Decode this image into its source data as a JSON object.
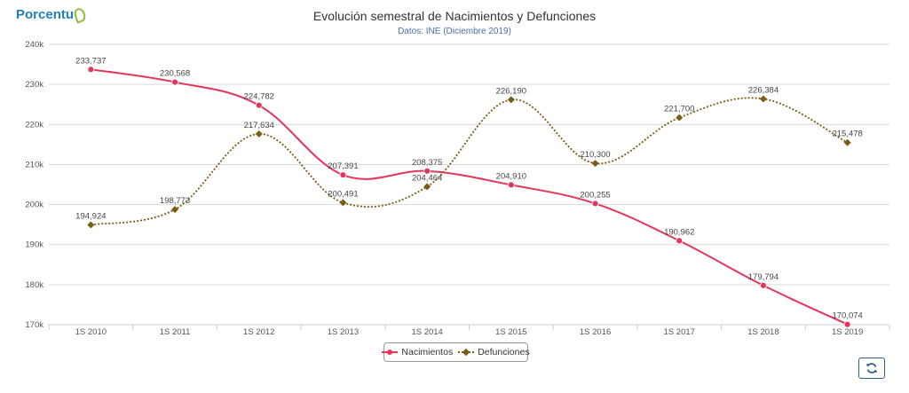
{
  "brand": {
    "name": "Porcentu",
    "mark": "refresh-like-logo-icon"
  },
  "header": {
    "title": "Evolución semestral de Nacimientos y Defunciones",
    "subtitle": "Datos: INE (Diciembre 2019)"
  },
  "toolbar": {
    "refresh_icon": "refresh-icon"
  },
  "colors": {
    "nacimientos": "#e8345a",
    "defunciones": "#7a5c12",
    "grid": "#d9d9d9",
    "subtitle": "#4a6fa5"
  },
  "chart_data": {
    "type": "line",
    "title": "Evolución semestral de Nacimientos y Defunciones",
    "subtitle": "Datos: INE (Diciembre 2019)",
    "categories": [
      "1S 2010",
      "1S 2011",
      "1S 2012",
      "1S 2013",
      "1S 2014",
      "1S 2015",
      "1S 2016",
      "1S 2017",
      "1S 2018",
      "1S 2019"
    ],
    "ylim": [
      170000,
      240000
    ],
    "yticks": [
      170000,
      180000,
      190000,
      200000,
      210000,
      220000,
      230000,
      240000
    ],
    "ytick_labels": [
      "170k",
      "180k",
      "190k",
      "200k",
      "210k",
      "220k",
      "230k",
      "240k"
    ],
    "grid": true,
    "legend_position": "bottom-center",
    "series": [
      {
        "name": "Nacimientos",
        "style": "solid",
        "marker": "circle",
        "values": [
          233737,
          230568,
          224782,
          207391,
          208375,
          204910,
          200255,
          190962,
          179794,
          170074
        ],
        "labels": [
          "233,737",
          "230,568",
          "224,782",
          "207,391",
          "208,375",
          "204,910",
          "200,255",
          "190,962",
          "179,794",
          "170,074"
        ]
      },
      {
        "name": "Defunciones",
        "style": "dotted",
        "marker": "diamond",
        "values": [
          194924,
          198773,
          217634,
          200491,
          204464,
          226190,
          210300,
          221700,
          226384,
          215478
        ],
        "labels": [
          "194,924",
          "198,773",
          "217,634",
          "200,491",
          "204,464",
          "226,190",
          "210,300",
          "221,700",
          "226,384",
          "215,478"
        ]
      }
    ]
  }
}
